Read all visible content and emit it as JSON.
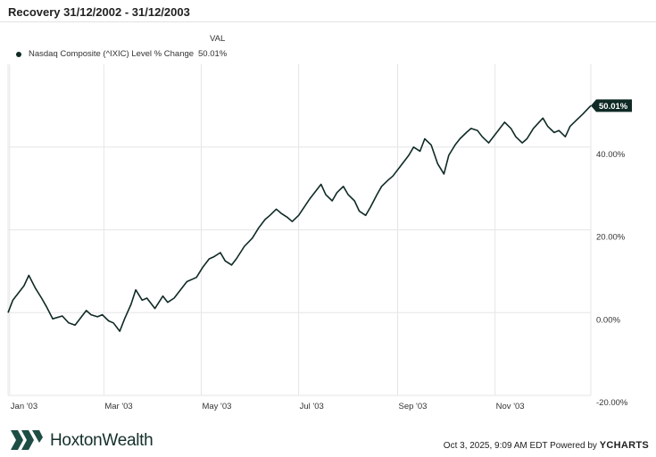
{
  "title": "Recovery  31/12/2002 - 31/12/2003",
  "legend": {
    "header": "VAL",
    "series_name": "Nasdaq Composite (^IXIC) Level % Change",
    "series_value": "50.01%"
  },
  "footer": {
    "brand": "HoxtonWealth",
    "timestamp": "Oct 3, 2025, 9:09 AM EDT Powered by",
    "provider_mark": "Y",
    "provider_name": "CHARTS"
  },
  "colors": {
    "line": "#0f2a25",
    "grid": "#e6e6e6",
    "badge": "#0f2a25"
  },
  "chart_data": {
    "type": "line",
    "x_tick_labels": [
      "Jan '03",
      "Mar '03",
      "May '03",
      "Jul '03",
      "Sep '03",
      "Nov '03"
    ],
    "y_tick_labels": [
      "40.00%",
      "20.00%",
      "0.00%",
      "-20.00%"
    ],
    "y_ticks": [
      40,
      20,
      0,
      -20
    ],
    "ylim": [
      -20,
      60
    ],
    "xlim": [
      "2002-12-31",
      "2003-12-31"
    ],
    "end_label": "50.01%",
    "series": [
      {
        "name": "Nasdaq Composite (^IXIC) Level % Change",
        "points": [
          [
            "2002-12-31",
            0.0
          ],
          [
            "2003-01-03",
            3.0
          ],
          [
            "2003-01-07",
            5.0
          ],
          [
            "2003-01-10",
            6.5
          ],
          [
            "2003-01-13",
            9.0
          ],
          [
            "2003-01-17",
            6.0
          ],
          [
            "2003-01-21",
            3.5
          ],
          [
            "2003-01-24",
            1.5
          ],
          [
            "2003-01-28",
            -1.5
          ],
          [
            "2003-02-03",
            -0.8
          ],
          [
            "2003-02-07",
            -2.5
          ],
          [
            "2003-02-11",
            -3.0
          ],
          [
            "2003-02-14",
            -1.5
          ],
          [
            "2003-02-18",
            0.5
          ],
          [
            "2003-02-21",
            -0.5
          ],
          [
            "2003-02-25",
            -1.0
          ],
          [
            "2003-02-28",
            -0.5
          ],
          [
            "2003-03-04",
            -2.0
          ],
          [
            "2003-03-07",
            -2.5
          ],
          [
            "2003-03-11",
            -4.5
          ],
          [
            "2003-03-14",
            -1.5
          ],
          [
            "2003-03-18",
            2.0
          ],
          [
            "2003-03-21",
            5.5
          ],
          [
            "2003-03-25",
            3.0
          ],
          [
            "2003-03-28",
            3.5
          ],
          [
            "2003-04-02",
            1.0
          ],
          [
            "2003-04-07",
            4.0
          ],
          [
            "2003-04-10",
            2.5
          ],
          [
            "2003-04-14",
            3.5
          ],
          [
            "2003-04-17",
            5.0
          ],
          [
            "2003-04-22",
            7.5
          ],
          [
            "2003-04-28",
            8.5
          ],
          [
            "2003-05-02",
            11.0
          ],
          [
            "2003-05-06",
            13.0
          ],
          [
            "2003-05-09",
            13.5
          ],
          [
            "2003-05-13",
            14.5
          ],
          [
            "2003-05-16",
            12.5
          ],
          [
            "2003-05-20",
            11.5
          ],
          [
            "2003-05-23",
            13.0
          ],
          [
            "2003-05-28",
            16.0
          ],
          [
            "2003-06-02",
            18.0
          ],
          [
            "2003-06-06",
            20.5
          ],
          [
            "2003-06-10",
            22.5
          ],
          [
            "2003-06-13",
            23.5
          ],
          [
            "2003-06-17",
            25.0
          ],
          [
            "2003-06-20",
            24.0
          ],
          [
            "2003-06-24",
            23.0
          ],
          [
            "2003-06-27",
            22.0
          ],
          [
            "2003-07-01",
            23.5
          ],
          [
            "2003-07-08",
            27.5
          ],
          [
            "2003-07-11",
            29.0
          ],
          [
            "2003-07-15",
            31.0
          ],
          [
            "2003-07-18",
            28.5
          ],
          [
            "2003-07-22",
            27.0
          ],
          [
            "2003-07-25",
            29.0
          ],
          [
            "2003-07-29",
            30.5
          ],
          [
            "2003-08-01",
            28.5
          ],
          [
            "2003-08-05",
            27.0
          ],
          [
            "2003-08-08",
            24.5
          ],
          [
            "2003-08-12",
            23.5
          ],
          [
            "2003-08-15",
            25.5
          ],
          [
            "2003-08-19",
            28.5
          ],
          [
            "2003-08-22",
            30.5
          ],
          [
            "2003-08-26",
            32.0
          ],
          [
            "2003-08-29",
            33.0
          ],
          [
            "2003-09-03",
            35.5
          ],
          [
            "2003-09-08",
            38.0
          ],
          [
            "2003-09-11",
            40.0
          ],
          [
            "2003-09-15",
            39.0
          ],
          [
            "2003-09-18",
            42.0
          ],
          [
            "2003-09-22",
            40.5
          ],
          [
            "2003-09-26",
            36.0
          ],
          [
            "2003-09-30",
            33.5
          ],
          [
            "2003-10-03",
            38.0
          ],
          [
            "2003-10-07",
            40.5
          ],
          [
            "2003-10-10",
            42.0
          ],
          [
            "2003-10-14",
            43.5
          ],
          [
            "2003-10-17",
            44.5
          ],
          [
            "2003-10-21",
            44.0
          ],
          [
            "2003-10-24",
            42.5
          ],
          [
            "2003-10-28",
            41.0
          ],
          [
            "2003-11-03",
            44.0
          ],
          [
            "2003-11-07",
            46.0
          ],
          [
            "2003-11-11",
            44.5
          ],
          [
            "2003-11-14",
            42.5
          ],
          [
            "2003-11-18",
            41.0
          ],
          [
            "2003-11-21",
            42.0
          ],
          [
            "2003-11-25",
            44.5
          ],
          [
            "2003-12-01",
            47.0
          ],
          [
            "2003-12-04",
            45.0
          ],
          [
            "2003-12-08",
            43.5
          ],
          [
            "2003-12-11",
            44.0
          ],
          [
            "2003-12-15",
            42.5
          ],
          [
            "2003-12-18",
            45.0
          ],
          [
            "2003-12-22",
            46.5
          ],
          [
            "2003-12-26",
            48.0
          ],
          [
            "2003-12-31",
            50.01
          ]
        ]
      }
    ]
  }
}
